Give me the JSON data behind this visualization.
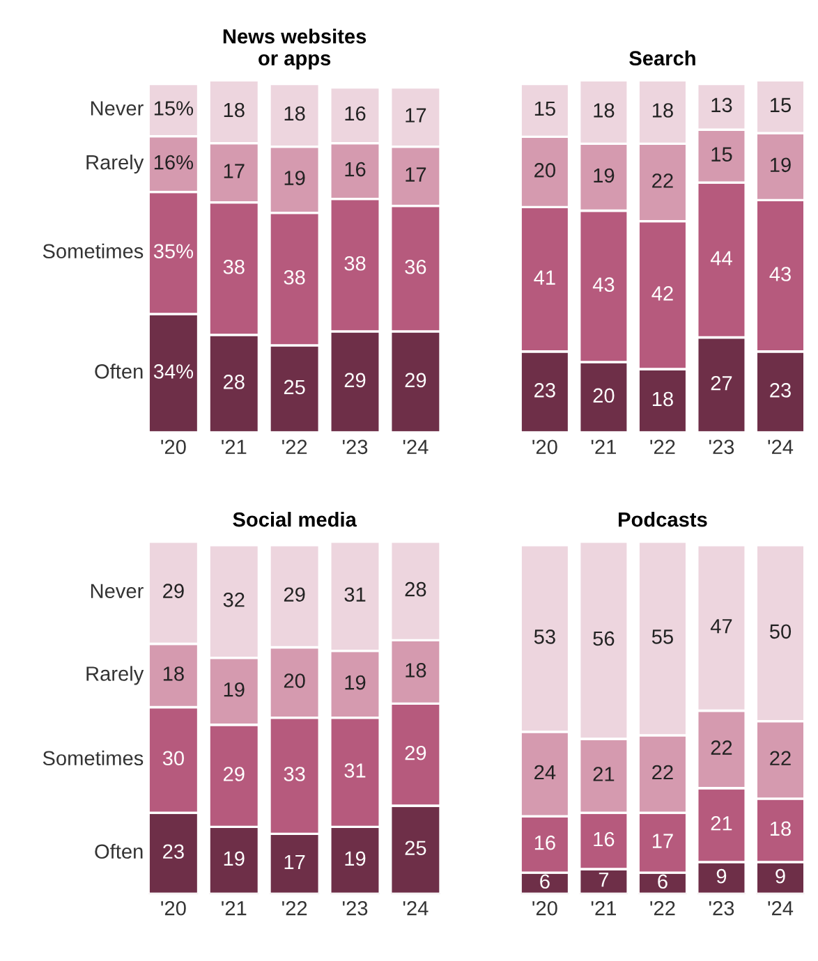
{
  "chart_data": [
    {
      "type": "bar",
      "title": "News websites\nor apps",
      "categories": [
        "'20",
        "'21",
        "'22",
        "'23",
        "'24"
      ],
      "stacked": true,
      "data_labels": true,
      "series": [
        {
          "name": "Often",
          "color": "#6e2f48",
          "values": [
            34,
            28,
            25,
            29,
            29
          ],
          "value_labels": [
            "34%",
            "28",
            "25",
            "29",
            "29"
          ]
        },
        {
          "name": "Sometimes",
          "color": "#b65a7d",
          "values": [
            35,
            38,
            38,
            38,
            36
          ],
          "value_labels": [
            "35%",
            "38",
            "38",
            "38",
            "36"
          ]
        },
        {
          "name": "Rarely",
          "color": "#d59aaf",
          "values": [
            16,
            17,
            19,
            16,
            17
          ],
          "value_labels": [
            "16%",
            "17",
            "19",
            "16",
            "17"
          ]
        },
        {
          "name": "Never",
          "color": "#edd5de",
          "values": [
            15,
            18,
            18,
            16,
            17
          ],
          "value_labels": [
            "15%",
            "18",
            "18",
            "16",
            "17"
          ]
        }
      ]
    },
    {
      "type": "bar",
      "title": "Search",
      "categories": [
        "'20",
        "'21",
        "'22",
        "'23",
        "'24"
      ],
      "stacked": true,
      "data_labels": true,
      "series": [
        {
          "color": "#6e2f48",
          "values": [
            23,
            20,
            18,
            27,
            23
          ]
        },
        {
          "color": "#b65a7d",
          "values": [
            41,
            43,
            42,
            44,
            43
          ]
        },
        {
          "color": "#d59aaf",
          "values": [
            20,
            19,
            22,
            15,
            19
          ]
        },
        {
          "color": "#edd5de",
          "values": [
            15,
            18,
            18,
            13,
            15
          ]
        }
      ]
    },
    {
      "type": "bar",
      "title": "Social media",
      "categories": [
        "'20",
        "'21",
        "'22",
        "'23",
        "'24"
      ],
      "stacked": true,
      "data_labels": true,
      "series": [
        {
          "name": "Often",
          "color": "#6e2f48",
          "values": [
            23,
            19,
            17,
            19,
            25
          ]
        },
        {
          "name": "Sometimes",
          "color": "#b65a7d",
          "values": [
            30,
            29,
            33,
            31,
            29
          ]
        },
        {
          "name": "Rarely",
          "color": "#d59aaf",
          "values": [
            18,
            19,
            20,
            19,
            18
          ]
        },
        {
          "name": "Never",
          "color": "#edd5de",
          "values": [
            29,
            32,
            29,
            31,
            28
          ]
        }
      ]
    },
    {
      "type": "bar",
      "title": "Podcasts",
      "categories": [
        "'20",
        "'21",
        "'22",
        "'23",
        "'24"
      ],
      "stacked": true,
      "data_labels": true,
      "series": [
        {
          "color": "#6e2f48",
          "values": [
            6,
            7,
            6,
            9,
            9
          ]
        },
        {
          "color": "#b65a7d",
          "values": [
            16,
            16,
            17,
            21,
            18
          ]
        },
        {
          "color": "#d59aaf",
          "values": [
            24,
            21,
            22,
            22,
            22
          ]
        },
        {
          "color": "#edd5de",
          "values": [
            53,
            56,
            55,
            47,
            50
          ]
        }
      ]
    }
  ]
}
